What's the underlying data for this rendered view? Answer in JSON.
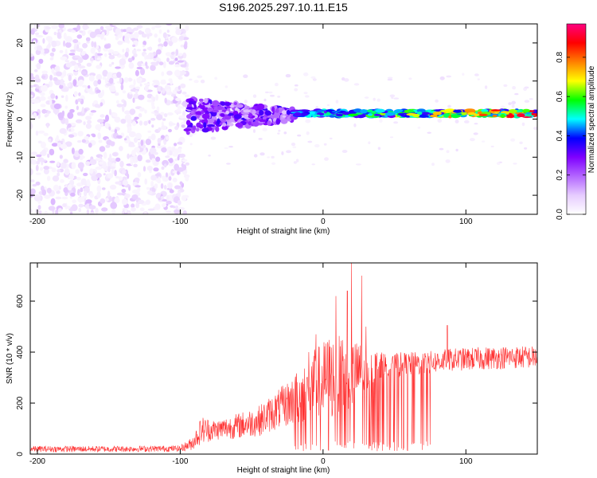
{
  "title": "S196.2025.297.10.11.E15",
  "chart_data": [
    {
      "type": "heatmap",
      "title": "S196.2025.297.10.11.E15",
      "xlabel": "Height of straight line (km)",
      "ylabel": "Frequency (Hz)",
      "xlim": [
        -205,
        150
      ],
      "ylim": [
        -25,
        25
      ],
      "xticks": [
        -200,
        -100,
        0,
        100
      ],
      "yticks": [
        -20,
        -10,
        0,
        10,
        20
      ],
      "colorbar": {
        "label": "Normalized spectral amplitude",
        "range": [
          0.0,
          0.97
        ],
        "ticks": [
          0.0,
          0.2,
          0.4,
          0.6,
          0.8
        ],
        "tick_labels": [
          "0.0",
          "0.2",
          "0.4",
          "0.6",
          "0.8"
        ],
        "colormap": [
          "#ffffff",
          "#e6ccff",
          "#b366ff",
          "#7f00ff",
          "#0000ff",
          "#00ffff",
          "#00ff00",
          "#ffff00",
          "#ff8000",
          "#ff0000",
          "#ff0080"
        ]
      },
      "regions": [
        {
          "x_range": [
            -205,
            -95
          ],
          "description_value": "noise",
          "amplitude": [
            0.02,
            0.12
          ],
          "freq_range": [
            -25,
            25
          ]
        },
        {
          "x_range": [
            -95,
            -20
          ],
          "amplitude": [
            0.1,
            0.35
          ],
          "freq_range": [
            -5,
            8
          ]
        },
        {
          "x_range": [
            -20,
            150
          ],
          "amplitude": [
            0.3,
            0.97
          ],
          "center_freq": 1.5,
          "freq_halfwidth": 0.8
        }
      ]
    },
    {
      "type": "line",
      "xlabel": "Height of straight line (km)",
      "ylabel": "SNR (10 * v/v)",
      "xlim": [
        -205,
        150
      ],
      "ylim": [
        0,
        750
      ],
      "xticks": [
        -200,
        -100,
        0,
        100
      ],
      "yticks": [
        0,
        200,
        400,
        600
      ],
      "color": "#ff3030",
      "envelope": {
        "x": [
          -205,
          -150,
          -100,
          -92,
          -85,
          -75,
          -60,
          -45,
          -30,
          -15,
          -5,
          5,
          15,
          25,
          40,
          60,
          75,
          90,
          110,
          130,
          150
        ],
        "mean": [
          20,
          20,
          22,
          40,
          95,
          95,
          110,
          130,
          180,
          230,
          280,
          300,
          310,
          320,
          345,
          350,
          360,
          370,
          375,
          380,
          380
        ],
        "spread": [
          12,
          12,
          12,
          25,
          55,
          40,
          50,
          60,
          80,
          110,
          140,
          170,
          150,
          120,
          55,
          50,
          45,
          45,
          45,
          45,
          45
        ]
      },
      "spikes": [
        {
          "x": 20,
          "y": 750
        },
        {
          "x": 27,
          "y": 700
        },
        {
          "x": 17,
          "y": 640
        },
        {
          "x": 9,
          "y": 620
        },
        {
          "x": -10,
          "y": 400
        },
        {
          "x": -5,
          "y": 470
        },
        {
          "x": 30,
          "y": 500
        },
        {
          "x": 87,
          "y": 505
        }
      ]
    }
  ]
}
